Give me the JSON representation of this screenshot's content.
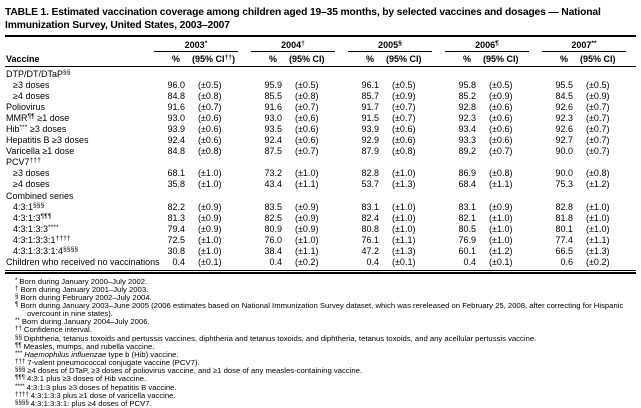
{
  "table": {
    "title": "TABLE 1. Estimated vaccination coverage among children aged 19–35 months, by selected vaccines and dosages — National Immunization Survey, United States, 2003–2007",
    "header": {
      "vaccine_label": "Vaccine",
      "pct_label": "%",
      "years": [
        {
          "label": "2003",
          "sup": "*",
          "ci_pre": "(95% CI",
          "ci_sup": "††",
          "ci_post": ")"
        },
        {
          "label": "2004",
          "sup": "†",
          "ci_pre": "(95% CI",
          "ci_sup": "",
          "ci_post": ")"
        },
        {
          "label": "2005",
          "sup": "§",
          "ci_pre": "(95% CI",
          "ci_sup": "",
          "ci_post": ")"
        },
        {
          "label": "2006",
          "sup": "¶",
          "ci_pre": "(95% CI",
          "ci_sup": "",
          "ci_post": ")"
        },
        {
          "label": "2007",
          "sup": "**",
          "ci_pre": "(95% CI",
          "ci_sup": "",
          "ci_post": ")"
        }
      ]
    },
    "rows": [
      {
        "type": "section",
        "pre": "DTP/DT/DTaP",
        "sup": "§§",
        "post": ""
      },
      {
        "type": "data",
        "indent": true,
        "pre": "≥3 doses",
        "sup": "",
        "post": "",
        "values": [
          "96.0",
          "(±0.5)",
          "95.9",
          "(±0.5)",
          "96.1",
          "(±0.5)",
          "95.8",
          "(±0.5)",
          "95.5",
          "(±0.5)"
        ]
      },
      {
        "type": "data",
        "indent": true,
        "pre": "≥4 doses",
        "sup": "",
        "post": "",
        "values": [
          "84.8",
          "(±0.8)",
          "85.5",
          "(±0.8)",
          "85.7",
          "(±0.9)",
          "85.2",
          "(±0.9)",
          "84.5",
          "(±0.9)"
        ]
      },
      {
        "type": "data",
        "indent": false,
        "pre": "Poliovirus",
        "sup": "",
        "post": "",
        "values": [
          "91.6",
          "(±0.7)",
          "91.6",
          "(±0.7)",
          "91.7",
          "(±0.7)",
          "92.8",
          "(±0.6)",
          "92.6",
          "(±0.7)"
        ]
      },
      {
        "type": "data",
        "indent": false,
        "pre": "MMR",
        "sup": "¶¶",
        "post": " ≥1 dose",
        "values": [
          "93.0",
          "(±0.6)",
          "93.0",
          "(±0.6)",
          "91.5",
          "(±0.7)",
          "92.3",
          "(±0.6)",
          "92.3",
          "(±0.7)"
        ]
      },
      {
        "type": "data",
        "indent": false,
        "pre": "Hib",
        "sup": "***",
        "post": " ≥3 doses",
        "values": [
          "93.9",
          "(±0.6)",
          "93.5",
          "(±0.6)",
          "93.9",
          "(±0.6)",
          "93.4",
          "(±0.6)",
          "92.6",
          "(±0.7)"
        ]
      },
      {
        "type": "data",
        "indent": false,
        "pre": "Hepatitis B ≥3 doses",
        "sup": "",
        "post": "",
        "values": [
          "92.4",
          "(±0.6)",
          "92.4",
          "(±0.6)",
          "92.9",
          "(±0.6)",
          "93.3",
          "(±0.6)",
          "92.7",
          "(±0.7)"
        ]
      },
      {
        "type": "data",
        "indent": false,
        "pre": "Varicella ≥1 dose",
        "sup": "",
        "post": "",
        "values": [
          "84.8",
          "(±0.8)",
          "87.5",
          "(±0.7)",
          "87.9",
          "(±0.8)",
          "89.2",
          "(±0.7)",
          "90.0",
          "(±0.7)"
        ]
      },
      {
        "type": "section",
        "pre": "PCV7",
        "sup": "†††",
        "post": ""
      },
      {
        "type": "data",
        "indent": true,
        "pre": "≥3 doses",
        "sup": "",
        "post": "",
        "values": [
          "68.1",
          "(±1.0)",
          "73.2",
          "(±1.0)",
          "82.8",
          "(±1.0)",
          "86.9",
          "(±0.8)",
          "90.0",
          "(±0.8)"
        ]
      },
      {
        "type": "data",
        "indent": true,
        "pre": "≥4 doses",
        "sup": "",
        "post": "",
        "values": [
          "35.8",
          "(±1.0)",
          "43.4",
          "(±1.1)",
          "53.7",
          "(±1.3)",
          "68.4",
          "(±1.1)",
          "75.3",
          "(±1.2)"
        ]
      },
      {
        "type": "section",
        "pre": "Combined series",
        "sup": "",
        "post": ""
      },
      {
        "type": "data",
        "indent": true,
        "pre": "4:3:1",
        "sup": "§§§",
        "post": "",
        "values": [
          "82.2",
          "(±0.9)",
          "83.5",
          "(±0.9)",
          "83.1",
          "(±1.0)",
          "83.1",
          "(±0.9)",
          "82.8",
          "(±1.0)"
        ]
      },
      {
        "type": "data",
        "indent": true,
        "pre": "4:3:1:3",
        "sup": "¶¶¶",
        "post": "",
        "values": [
          "81.3",
          "(±0.9)",
          "82.5",
          "(±0.9)",
          "82.4",
          "(±1.0)",
          "82.1",
          "(±1.0)",
          "81.8",
          "(±1.0)"
        ]
      },
      {
        "type": "data",
        "indent": true,
        "pre": "4:3:1:3:3",
        "sup": "****",
        "post": "",
        "values": [
          "79.4",
          "(±0.9)",
          "80.9",
          "(±0.9)",
          "80.8",
          "(±1.0)",
          "80.5",
          "(±1.0)",
          "80.1",
          "(±1.0)"
        ]
      },
      {
        "type": "data",
        "indent": true,
        "pre": "4:3:1:3:3:1",
        "sup": "††††",
        "post": "",
        "values": [
          "72.5",
          "(±1.0)",
          "76.0",
          "(±1.0)",
          "76.1",
          "(±1.1)",
          "76.9",
          "(±1.0)",
          "77.4",
          "(±1.1)"
        ]
      },
      {
        "type": "data",
        "indent": true,
        "pre": "4:3:1:3:3:1:4",
        "sup": "§§§§",
        "post": "",
        "values": [
          "30.8",
          "(±1.0)",
          "38.4",
          "(±1.1)",
          "47.2",
          "(±1.3)",
          "60.1",
          "(±1.2)",
          "66.5",
          "(±1.3)"
        ]
      },
      {
        "type": "data",
        "indent": false,
        "pre": "Children who received no vaccinations",
        "sup": "",
        "post": "",
        "values": [
          "0.4",
          "(±0.1)",
          "0.4",
          "(±0.2)",
          "0.4",
          "(±0.1)",
          "0.4",
          "(±0.1)",
          "0.6",
          "(±0.2)"
        ]
      }
    ]
  },
  "footnotes": [
    {
      "marker": "*",
      "pre": "Born during January 2000–July 2002.",
      "italic": "",
      "post": ""
    },
    {
      "marker": "†",
      "pre": "Born during January 2001–July 2003.",
      "italic": "",
      "post": ""
    },
    {
      "marker": "§",
      "pre": "Born during February 2002–July 2004.",
      "italic": "",
      "post": ""
    },
    {
      "marker": "¶",
      "pre": "Born during January 2003–June 2005 (2006 estimates based on National Immunization Survey dataset, which was rereleased on February 25, 2008, after correcting for Hispanic overcount in nine states).",
      "italic": "",
      "post": ""
    },
    {
      "marker": "**",
      "pre": "Born during January 2004–July 2006.",
      "italic": "",
      "post": ""
    },
    {
      "marker": "††",
      "pre": "Confidence interval.",
      "italic": "",
      "post": ""
    },
    {
      "marker": "§§",
      "pre": "Diphtheria, tetanus toxoids and pertussis vaccines, diphtheria and tetanus toxoids, and diphtheria, tetanus toxoids, and any acellular pertussis vaccine.",
      "italic": "",
      "post": ""
    },
    {
      "marker": "¶¶",
      "pre": "Measles, mumps, and rubella vaccine.",
      "italic": "",
      "post": ""
    },
    {
      "marker": "***",
      "pre": "",
      "italic": "Haemophilus influenzae",
      "post": " type b (Hib) vaccine."
    },
    {
      "marker": "†††",
      "pre": "7-valent pneumococcal conjugate vaccine (PCV7).",
      "italic": "",
      "post": ""
    },
    {
      "marker": "§§§",
      "pre": "≥4 doses of DTaP, ≥3 doses of poliovirus vaccine, and ≥1 dose of any measles-containing vaccine.",
      "italic": "",
      "post": ""
    },
    {
      "marker": "¶¶¶",
      "pre": "4:3:1 plus ≥3 doses of Hib vaccine.",
      "italic": "",
      "post": ""
    },
    {
      "marker": "****",
      "pre": "4:3:1:3 plus ≥3 doses of hepatitis B vaccine.",
      "italic": "",
      "post": ""
    },
    {
      "marker": "††††",
      "pre": "4:3:1:3:3 plus ≥1 dose of varicella vaccine.",
      "italic": "",
      "post": ""
    },
    {
      "marker": "§§§§",
      "pre": "4:3:1:3:3:1: plus ≥4 doses of PCV7.",
      "italic": "",
      "post": ""
    }
  ]
}
